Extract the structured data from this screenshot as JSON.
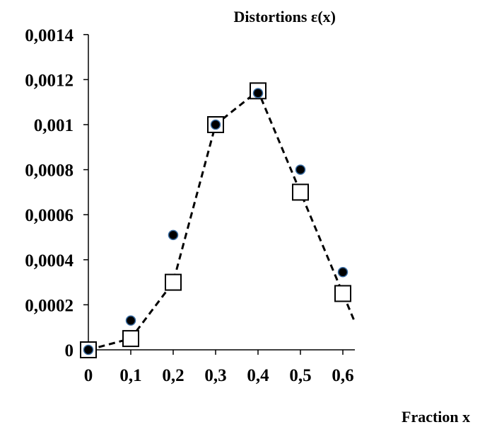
{
  "chart_data": {
    "type": "scatter",
    "title": "Distortions  ε(x)",
    "xlabel": "Fraction x",
    "ylabel": "",
    "xlim": [
      0,
      0.62
    ],
    "ylim": [
      0,
      0.0014
    ],
    "x_ticks": [
      "0",
      "0,1",
      "0,2",
      "0,3",
      "0,4",
      "0,5",
      "0,6"
    ],
    "y_ticks": [
      "0",
      "0,0002",
      "0,0004",
      "0,0006",
      "0,0008",
      "0,001",
      "0,0012",
      "0,0014"
    ],
    "grid": false,
    "series": [
      {
        "marker": "filled-circle",
        "x": [
          0,
          0.1,
          0.2,
          0.3,
          0.4,
          0.5,
          0.6
        ],
        "y": [
          0,
          0.00013,
          0.00051,
          0.001,
          0.00114,
          0.0008,
          0.000345
        ]
      },
      {
        "marker": "open-square",
        "line": "dashed",
        "x": [
          0,
          0.1,
          0.2,
          0.3,
          0.4,
          0.5,
          0.6
        ],
        "y": [
          0,
          5e-05,
          0.0003,
          0.001,
          0.00115,
          0.0007,
          0.00025
        ]
      }
    ]
  },
  "colors": {
    "axis": "#000000",
    "circle_fill": "#000000",
    "circle_edge": "#3a6ea5",
    "square_stroke": "#000000"
  }
}
